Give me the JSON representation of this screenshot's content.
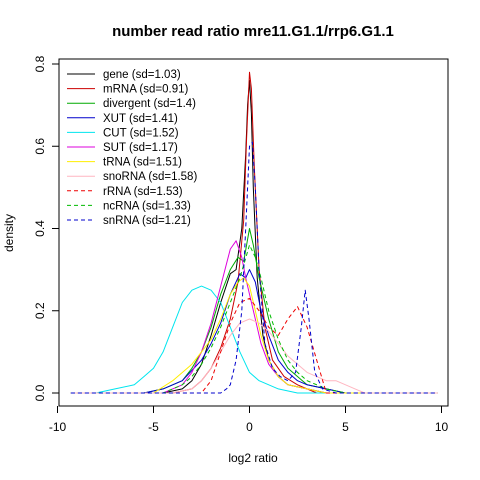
{
  "chart_data": {
    "type": "line",
    "title": "number read ratio mre11.G1.1/rrp6.G1.1",
    "xlabel": "log2 ratio",
    "ylabel": "density",
    "xlim": [
      -10,
      10
    ],
    "ylim": [
      0,
      0.8
    ],
    "xticks": [
      -10,
      -5,
      0,
      5,
      10
    ],
    "yticks": [
      0.0,
      0.2,
      0.4,
      0.6,
      0.8
    ],
    "x_tick_labels": [
      "-10",
      "-5",
      "0",
      "5",
      "10"
    ],
    "y_tick_labels": [
      "0.0",
      "0.2",
      "0.4",
      "0.6",
      "0.8"
    ],
    "grid": false,
    "legend_position": "top-left",
    "series": [
      {
        "name": "gene (sd=1.03)",
        "color": "#000000",
        "dash": "solid",
        "x": [
          -4.5,
          -3.5,
          -3.0,
          -2.5,
          -2.0,
          -1.5,
          -1.0,
          -0.7,
          -0.4,
          -0.2,
          -0.1,
          0.0,
          0.1,
          0.2,
          0.4,
          0.7,
          1.0,
          1.5,
          2.0,
          3.0,
          4.0,
          5.0
        ],
        "y": [
          0.0,
          0.01,
          0.03,
          0.07,
          0.14,
          0.22,
          0.29,
          0.3,
          0.4,
          0.58,
          0.7,
          0.76,
          0.68,
          0.5,
          0.28,
          0.14,
          0.08,
          0.04,
          0.02,
          0.01,
          0.0,
          0.0
        ]
      },
      {
        "name": "mRNA (sd=0.91)",
        "color": "#cc0000",
        "dash": "solid",
        "x": [
          -4.0,
          -3.0,
          -2.5,
          -2.0,
          -1.5,
          -1.0,
          -0.6,
          -0.3,
          -0.15,
          0.0,
          0.1,
          0.25,
          0.5,
          0.8,
          1.2,
          1.8,
          2.5,
          3.5,
          4.5
        ],
        "y": [
          0.0,
          0.01,
          0.03,
          0.06,
          0.11,
          0.18,
          0.27,
          0.42,
          0.62,
          0.78,
          0.74,
          0.55,
          0.3,
          0.16,
          0.08,
          0.04,
          0.02,
          0.0,
          0.0
        ]
      },
      {
        "name": "divergent (sd=1.4)",
        "color": "#00aa00",
        "dash": "solid",
        "x": [
          -5.5,
          -4.5,
          -3.5,
          -3.0,
          -2.5,
          -2.0,
          -1.5,
          -1.0,
          -0.6,
          -0.3,
          0.0,
          0.2,
          0.5,
          1.0,
          1.5,
          2.0,
          3.0,
          4.0,
          5.0,
          5.5
        ],
        "y": [
          0.0,
          0.01,
          0.03,
          0.06,
          0.1,
          0.16,
          0.24,
          0.3,
          0.33,
          0.32,
          0.4,
          0.36,
          0.28,
          0.18,
          0.1,
          0.06,
          0.02,
          0.01,
          0.0,
          0.0
        ]
      },
      {
        "name": "XUT (sd=1.41)",
        "color": "#0000cc",
        "dash": "solid",
        "x": [
          -5.5,
          -4.5,
          -3.5,
          -2.5,
          -2.0,
          -1.5,
          -1.0,
          -0.5,
          -0.2,
          0.0,
          0.3,
          0.6,
          1.0,
          1.5,
          2.0,
          2.5,
          3.0,
          4.0,
          5.0
        ],
        "y": [
          0.0,
          0.01,
          0.03,
          0.08,
          0.12,
          0.17,
          0.24,
          0.29,
          0.28,
          0.3,
          0.27,
          0.2,
          0.14,
          0.08,
          0.05,
          0.03,
          0.02,
          0.01,
          0.0
        ]
      },
      {
        "name": "CUT (sd=1.52)",
        "color": "#00e5ee",
        "dash": "solid",
        "x": [
          -8.0,
          -7.0,
          -6.0,
          -5.5,
          -5.0,
          -4.5,
          -4.0,
          -3.5,
          -3.0,
          -2.5,
          -2.0,
          -1.5,
          -1.0,
          -0.5,
          0.0,
          0.5,
          1.0,
          1.5,
          2.5,
          3.5
        ],
        "y": [
          0.0,
          0.01,
          0.02,
          0.04,
          0.06,
          0.1,
          0.16,
          0.22,
          0.25,
          0.26,
          0.25,
          0.22,
          0.16,
          0.1,
          0.05,
          0.03,
          0.02,
          0.01,
          0.0,
          0.0
        ]
      },
      {
        "name": "SUT (sd=1.17)",
        "color": "#dd00dd",
        "dash": "solid",
        "x": [
          -4.5,
          -3.5,
          -3.0,
          -2.5,
          -2.0,
          -1.5,
          -1.0,
          -0.7,
          -0.4,
          -0.2,
          0.0,
          0.3,
          0.6,
          1.0,
          1.5,
          2.0,
          3.0,
          4.0
        ],
        "y": [
          0.0,
          0.02,
          0.05,
          0.1,
          0.17,
          0.26,
          0.35,
          0.37,
          0.33,
          0.28,
          0.24,
          0.18,
          0.12,
          0.07,
          0.04,
          0.02,
          0.01,
          0.0
        ]
      },
      {
        "name": "tRNA (sd=1.51)",
        "color": "#ffee00",
        "dash": "solid",
        "x": [
          -5.0,
          -4.0,
          -3.0,
          -2.5,
          -2.0,
          -1.5,
          -1.0,
          -0.6,
          -0.3,
          0.0,
          0.3,
          0.6,
          1.0,
          1.5,
          2.0,
          3.0,
          4.0
        ],
        "y": [
          0.0,
          0.03,
          0.07,
          0.1,
          0.13,
          0.18,
          0.24,
          0.27,
          0.28,
          0.26,
          0.2,
          0.14,
          0.08,
          0.04,
          0.02,
          0.01,
          0.0
        ]
      },
      {
        "name": "snoRNA (sd=1.58)",
        "color": "#ffb6c1",
        "dash": "solid",
        "x": [
          -4.0,
          -3.0,
          -2.5,
          -2.0,
          -1.5,
          -1.0,
          -0.5,
          0.0,
          0.5,
          1.0,
          1.5,
          2.0,
          2.5,
          3.0,
          3.5,
          4.0,
          4.5,
          5.0,
          5.5,
          6.0
        ],
        "y": [
          0.0,
          0.01,
          0.03,
          0.06,
          0.1,
          0.14,
          0.17,
          0.18,
          0.17,
          0.15,
          0.12,
          0.09,
          0.07,
          0.05,
          0.04,
          0.03,
          0.03,
          0.02,
          0.01,
          0.0
        ]
      },
      {
        "name": "rRNA (sd=1.53)",
        "color": "#ee0000",
        "dash": "dashed",
        "x": [
          -2.5,
          -2.0,
          -1.5,
          -1.0,
          -0.5,
          0.0,
          0.5,
          1.0,
          1.5,
          2.0,
          2.5,
          3.0,
          3.5,
          4.0
        ],
        "y": [
          0.0,
          0.03,
          0.1,
          0.17,
          0.22,
          0.23,
          0.2,
          0.16,
          0.14,
          0.18,
          0.21,
          0.16,
          0.08,
          0.0
        ]
      },
      {
        "name": "ncRNA (sd=1.33)",
        "color": "#00bb00",
        "dash": "dashed",
        "x": [
          -4.5,
          -3.5,
          -3.0,
          -2.5,
          -2.0,
          -1.5,
          -1.0,
          -0.5,
          0.0,
          0.3,
          0.6,
          1.0,
          1.5,
          2.0,
          2.5,
          3.0,
          4.0,
          5.0
        ],
        "y": [
          0.0,
          0.02,
          0.04,
          0.07,
          0.11,
          0.16,
          0.22,
          0.28,
          0.36,
          0.33,
          0.28,
          0.2,
          0.13,
          0.08,
          0.05,
          0.03,
          0.01,
          0.0
        ]
      },
      {
        "name": "snRNA (sd=1.21)",
        "color": "#0000cc",
        "dash": "dashed",
        "x": [
          -1.5,
          -1.2,
          -1.0,
          -0.7,
          -0.4,
          -0.2,
          0.0,
          0.15,
          0.3,
          0.5,
          0.8,
          1.2,
          1.6,
          2.0,
          2.4,
          2.7,
          2.9,
          3.1,
          3.4,
          3.8,
          4.5
        ],
        "y": [
          0.0,
          0.01,
          0.02,
          0.08,
          0.2,
          0.4,
          0.6,
          0.61,
          0.5,
          0.3,
          0.12,
          0.06,
          0.04,
          0.03,
          0.05,
          0.16,
          0.25,
          0.18,
          0.05,
          0.01,
          0.0
        ]
      }
    ]
  }
}
